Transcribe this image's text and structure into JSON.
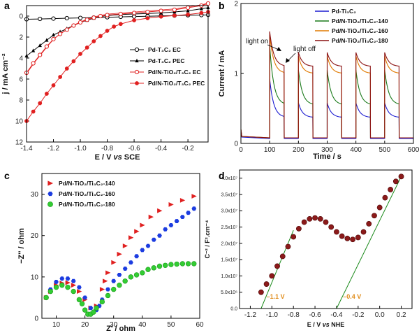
{
  "panels": [
    "a",
    "b",
    "c",
    "d"
  ],
  "chart_data": [
    {
      "panel": "a",
      "type": "line",
      "xlabel_prefix": "E / V ",
      "xlabel_vs": "vs",
      "xlabel_suffix": " SCE",
      "ylabel": "j / mA cm⁻²",
      "xlim": [
        -1.4,
        -0.05
      ],
      "ylim": [
        12,
        -1
      ],
      "y_inverted": true,
      "xticks": [
        "-1.4",
        "-1.2",
        "-1.0",
        "-0.8",
        "-0.6",
        "-0.4",
        "-0.2"
      ],
      "yticks": [
        "0",
        "2",
        "4",
        "6",
        "8",
        "10",
        "12"
      ],
      "legend_position": "center-right",
      "series": [
        {
          "name": "Pd-T₃C₂ EC",
          "color": "#000000",
          "marker": "open-circle",
          "x": [
            -1.4,
            -1.3,
            -1.2,
            -1.1,
            -1.0,
            -0.9,
            -0.8,
            -0.7,
            -0.6,
            -0.5,
            -0.4,
            -0.3,
            -0.2,
            -0.1,
            -0.05
          ],
          "y": [
            0.3,
            0.27,
            0.24,
            0.2,
            0.17,
            0.14,
            0.11,
            0.07,
            0.04,
            0.01,
            -0.02,
            -0.05,
            -0.08,
            -0.1,
            -0.12
          ]
        },
        {
          "name": "Pd-T₃C₂ PEC",
          "color": "#000000",
          "marker": "filled-triangle",
          "x": [
            -1.4,
            -1.35,
            -1.3,
            -1.25,
            -1.2,
            -1.15,
            -1.1,
            -1.05,
            -1.0,
            -0.95,
            -0.9,
            -0.85,
            -0.8,
            -0.7,
            -0.6,
            -0.5,
            -0.4,
            -0.3,
            -0.2,
            -0.1,
            -0.05
          ],
          "y": [
            3.8,
            3.3,
            2.8,
            2.3,
            1.8,
            1.5,
            1.2,
            0.9,
            0.6,
            0.4,
            0.2,
            0.05,
            -0.05,
            -0.15,
            -0.2,
            -0.25,
            -0.3,
            -0.4,
            -0.5,
            -0.7,
            -0.8
          ]
        },
        {
          "name": "Pd/N-TiO₂/T₃C₂ EC",
          "color": "#e02020",
          "marker": "open-circle",
          "x": [
            -1.4,
            -1.35,
            -1.3,
            -1.25,
            -1.2,
            -1.15,
            -1.1,
            -1.05,
            -1.0,
            -0.95,
            -0.9,
            -0.85,
            -0.8,
            -0.7,
            -0.6,
            -0.5,
            -0.4,
            -0.3,
            -0.2,
            -0.1,
            -0.05
          ],
          "y": [
            5.4,
            4.5,
            3.7,
            2.9,
            2.2,
            1.7,
            1.3,
            0.9,
            0.6,
            0.35,
            0.15,
            0.0,
            -0.1,
            -0.2,
            -0.3,
            -0.4,
            -0.5,
            -0.6,
            -0.8,
            -1.0,
            -1.2
          ]
        },
        {
          "name": "Pd/N-TiO₂/T₃C₂ PEC",
          "color": "#e02020",
          "marker": "filled-circle",
          "x": [
            -1.4,
            -1.35,
            -1.3,
            -1.25,
            -1.2,
            -1.15,
            -1.1,
            -1.05,
            -1.0,
            -0.95,
            -0.9,
            -0.85,
            -0.8,
            -0.75,
            -0.7,
            -0.6,
            -0.5,
            -0.4,
            -0.3,
            -0.2,
            -0.1,
            -0.05
          ],
          "y": [
            10.0,
            9.1,
            8.3,
            7.4,
            6.6,
            5.8,
            5.0,
            4.3,
            3.6,
            3.0,
            2.4,
            1.9,
            1.4,
            1.0,
            0.75,
            0.4,
            0.2,
            0.05,
            -0.05,
            -0.15,
            -0.3,
            -0.4
          ]
        }
      ]
    },
    {
      "panel": "b",
      "type": "line",
      "xlabel": "Time / s",
      "ylabel": "Current / mA",
      "xlim": [
        0,
        600
      ],
      "ylim": [
        0,
        2
      ],
      "xticks": [
        "0",
        "100",
        "200",
        "300",
        "400",
        "500",
        "600"
      ],
      "yticks": [
        "0",
        "1",
        "2"
      ],
      "legend_position": "top-right",
      "light_cycle": {
        "first_on": 100,
        "period": 100,
        "on_duration": 50,
        "cycles": 5
      },
      "annotations": [
        "light on",
        "light off"
      ],
      "series": [
        {
          "name": "Pd-Ti₃C₂",
          "color": "#1c1cd0",
          "dark": 0.07,
          "first_peak": 0.92,
          "other_peak": 0.58,
          "plateau": 0.37
        },
        {
          "name": "Pd/N-TiO₂/Ti₃C₂-140",
          "color": "#1a7a1a",
          "dark": 0.08,
          "first_peak": 1.4,
          "other_peak": 1.05,
          "plateau": 0.55
        },
        {
          "name": "Pd/N-TiO₂/Ti₃C₂-160",
          "color": "#e07a00",
          "dark": 0.08,
          "first_peak": 1.55,
          "other_peak": 1.25,
          "plateau": 1.0
        },
        {
          "name": "Pd/N-TiO₂/Ti₃C₂-180",
          "color": "#8a1010",
          "dark": 0.08,
          "first_peak": 1.6,
          "other_peak": 1.3,
          "plateau": 1.1
        }
      ]
    },
    {
      "panel": "c",
      "type": "scatter",
      "xlabel": "Z' / ohm",
      "ylabel": "−Z'' / ohm",
      "xlim": [
        5,
        60
      ],
      "ylim": [
        0,
        35
      ],
      "xticks": [
        "10",
        "20",
        "30",
        "40",
        "50",
        "60"
      ],
      "yticks": [
        "0",
        "10",
        "20",
        "30"
      ],
      "legend_position": "top-left",
      "series": [
        {
          "name": "Pd/N-TiO₂/Ti₃C₂-140",
          "color": "#e02020",
          "marker": "triangle-right",
          "x": [
            6.5,
            8,
            10,
            12,
            14,
            16,
            18,
            20,
            22,
            24,
            26,
            27,
            28,
            30,
            32,
            34,
            36,
            38,
            40,
            43,
            46,
            50,
            54,
            58
          ],
          "y": [
            5,
            6.5,
            8,
            8.5,
            8.6,
            8,
            6.5,
            4.5,
            2.5,
            3,
            7,
            9,
            11,
            13.5,
            15.5,
            17.5,
            19.5,
            21,
            22.5,
            24.5,
            26,
            27.5,
            28.5,
            29.5
          ]
        },
        {
          "name": "Pd/N-TiO₂/Ti₃C₂-160",
          "color": "#1c3ce0",
          "marker": "hexagon",
          "x": [
            6.5,
            8,
            10,
            12,
            14,
            16,
            18,
            20,
            22,
            23,
            24,
            25,
            26,
            28,
            30,
            32,
            34,
            36,
            38,
            40,
            42,
            44,
            46,
            48,
            50,
            52,
            54,
            56,
            58
          ],
          "y": [
            5,
            7,
            8.8,
            9.6,
            9.6,
            9,
            7.5,
            5,
            2.5,
            1.5,
            2,
            3,
            4.5,
            7,
            9,
            10.5,
            12,
            13.5,
            15,
            16.5,
            17.5,
            19,
            20,
            21.5,
            22.5,
            23.5,
            24.5,
            25.5,
            26.5
          ]
        },
        {
          "name": "Pd/N-TiO₂/Ti₃C₂-180",
          "color": "#33cc33",
          "marker": "circle",
          "x": [
            6.5,
            8,
            10,
            12,
            14,
            16,
            18,
            19,
            20,
            21,
            22,
            23,
            24,
            26,
            28,
            30,
            32,
            34,
            36,
            38,
            40,
            42,
            44,
            46,
            48,
            50,
            52,
            54,
            56,
            58
          ],
          "y": [
            5,
            6.5,
            7.5,
            8,
            7.5,
            6.5,
            4.5,
            3.5,
            2,
            1,
            1,
            1.5,
            2.5,
            4,
            5.5,
            7,
            8,
            9,
            10,
            10.5,
            11,
            11.8,
            12.2,
            12.6,
            12.8,
            13,
            13.1,
            13.2,
            13.2,
            13.2
          ]
        }
      ]
    },
    {
      "panel": "d",
      "type": "scatter",
      "xlabel_prefix": "E / V ",
      "xlabel_vs": "vs",
      "xlabel_suffix": " NHE",
      "ylabel": "C⁻² / F².cm⁻⁴",
      "xlim": [
        -1.3,
        0.3
      ],
      "ylim": [
        0,
        42500000.0
      ],
      "xticks": [
        "-1.2",
        "-1.0",
        "-0.8",
        "-0.6",
        "-0.4",
        "-0.2",
        "0.0",
        "0.2"
      ],
      "yticks": [
        "0.0",
        "5.0x10⁶",
        "1.0x10⁷",
        "1.5x10⁷",
        "2.0x10⁷",
        "2.5x10⁷",
        "3.0x10⁷",
        "3.5x10⁷",
        "4.0x10⁷"
      ],
      "points": {
        "color": "#8b1a1a",
        "x": [
          -1.1,
          -1.05,
          -1.0,
          -0.95,
          -0.9,
          -0.85,
          -0.8,
          -0.75,
          -0.7,
          -0.65,
          -0.6,
          -0.55,
          -0.5,
          -0.45,
          -0.4,
          -0.35,
          -0.3,
          -0.25,
          -0.2,
          -0.15,
          -0.1,
          -0.05,
          0.0,
          0.05,
          0.1,
          0.15,
          0.2
        ],
        "y": [
          5000000.0,
          7500000.0,
          10000000.0,
          13000000.0,
          16000000.0,
          19000000.0,
          22000000.0,
          24500000.0,
          26500000.0,
          27500000.0,
          27800000.0,
          27500000.0,
          26500000.0,
          25000000.0,
          23500000.0,
          22200000.0,
          21500000.0,
          21200000.0,
          21800000.0,
          23500000.0,
          26000000.0,
          28500000.0,
          31000000.0,
          34000000.0,
          36500000.0,
          39000000.0,
          40500000.0
        ]
      },
      "fit_lines": [
        {
          "x": [
            -1.1,
            -0.8
          ],
          "y": [
            0,
            24000000.0
          ],
          "color": "#1a8a1a"
        },
        {
          "x": [
            -0.4,
            0.2
          ],
          "y": [
            0,
            40500000.0
          ],
          "color": "#1a8a1a"
        }
      ],
      "annotations": [
        {
          "text": "–1.1 V",
          "color": "#e08c1a"
        },
        {
          "text": "–0.4 V",
          "color": "#e08c1a"
        }
      ]
    }
  ]
}
